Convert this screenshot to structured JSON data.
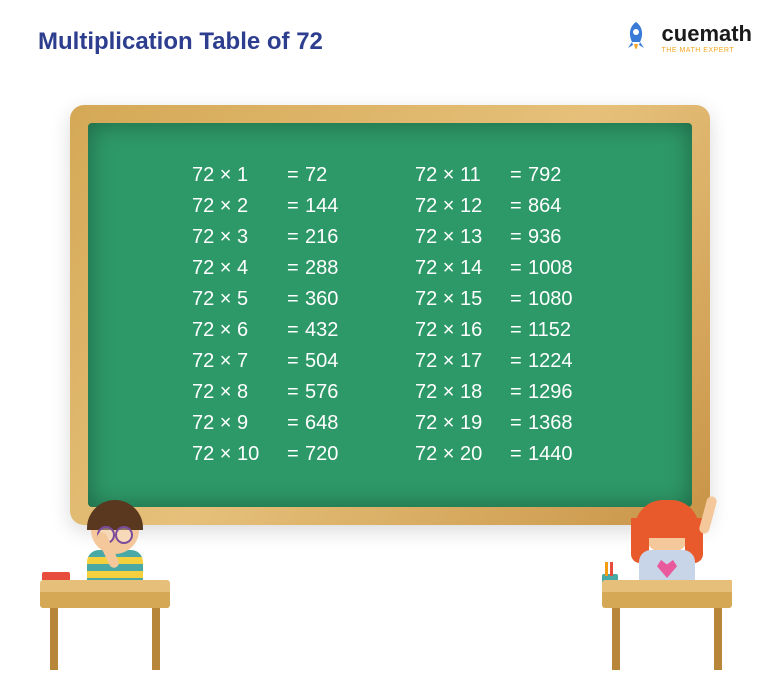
{
  "title": "Multiplication Table of 72",
  "logo": {
    "brand_cue": "cue",
    "brand_math": "math",
    "tagline": "THE MATH EXPERT",
    "rocket_body": "#3b7bd8",
    "rocket_flame": "#f5a623"
  },
  "colors": {
    "title_color": "#2d3e8f",
    "background": "#ffffff",
    "frame_light": "#e6c07a",
    "frame_dark": "#c89447",
    "board": "#2e9968",
    "chalk_text": "#ffffff"
  },
  "table": {
    "base": 72,
    "operator": "×",
    "equals": "=",
    "left_col": [
      {
        "m": 1,
        "r": 72
      },
      {
        "m": 2,
        "r": 144
      },
      {
        "m": 3,
        "r": 216
      },
      {
        "m": 4,
        "r": 288
      },
      {
        "m": 5,
        "r": 360
      },
      {
        "m": 6,
        "r": 432
      },
      {
        "m": 7,
        "r": 504
      },
      {
        "m": 8,
        "r": 576
      },
      {
        "m": 9,
        "r": 648
      },
      {
        "m": 10,
        "r": 720
      }
    ],
    "right_col": [
      {
        "m": 11,
        "r": 792
      },
      {
        "m": 12,
        "r": 864
      },
      {
        "m": 13,
        "r": 936
      },
      {
        "m": 14,
        "r": 1008
      },
      {
        "m": 15,
        "r": 1080
      },
      {
        "m": 16,
        "r": 1152
      },
      {
        "m": 17,
        "r": 1224
      },
      {
        "m": 18,
        "r": 1296
      },
      {
        "m": 19,
        "r": 1368
      },
      {
        "m": 20,
        "r": 1440
      }
    ],
    "font_size_pt": 20,
    "font_family": "Comic Sans MS"
  }
}
